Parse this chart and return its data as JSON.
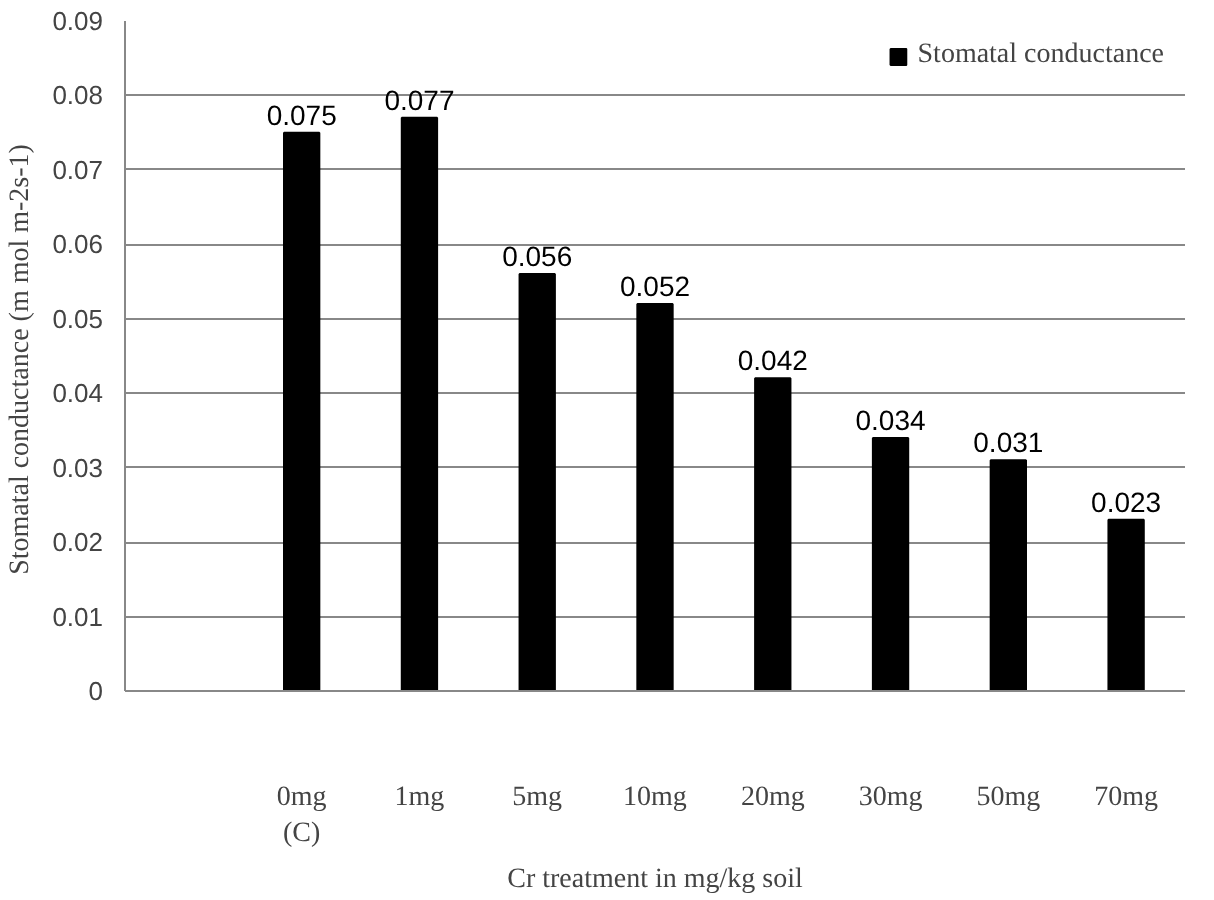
{
  "chart_data": {
    "type": "bar",
    "categories": [
      null,
      "0mg\n(C)",
      "1mg",
      "5mg",
      "10mg",
      "20mg",
      "30mg",
      "50mg",
      "70mg"
    ],
    "series": [
      {
        "name": "Stomatal conductance",
        "color": "#000000",
        "values": [
          null,
          0.075,
          0.077,
          0.056,
          0.052,
          0.042,
          0.034,
          0.031,
          0.023
        ]
      }
    ],
    "xlabel": "Cr treatment in mg/kg soil",
    "ylabel": "Stomatal conductance  (m mol m-2s-1)",
    "ylim": [
      0,
      0.09
    ],
    "yticks": [
      0,
      0.01,
      0.02,
      0.03,
      0.04,
      0.05,
      0.06,
      0.07,
      0.08,
      0.09
    ],
    "grid": "y",
    "legend": "top right",
    "data_labels": true
  }
}
